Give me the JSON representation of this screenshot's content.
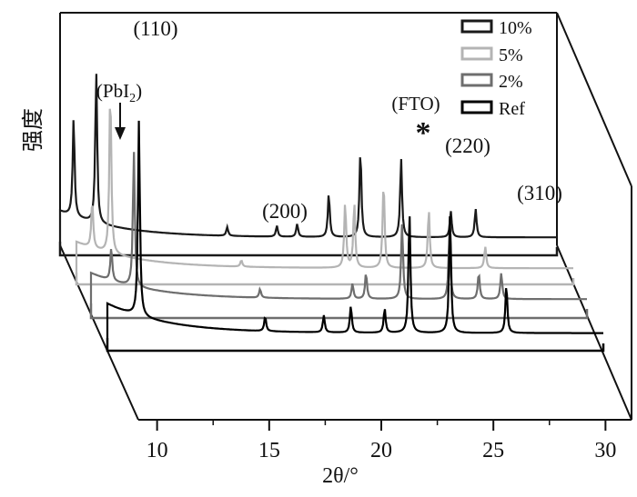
{
  "chart_data": {
    "type": "line",
    "subtype": "stacked-3d-waterfall",
    "title": "",
    "xlabel": "2θ/°",
    "ylabel": "强度",
    "xlim": [
      9,
      31
    ],
    "x_ticks": [
      10,
      15,
      20,
      25,
      30
    ],
    "x_tick_labels": [
      "10",
      "15",
      "20",
      "25",
      "30"
    ],
    "grid": false,
    "legend_position": "top-right",
    "legend": [
      "10%",
      "5%",
      "2%",
      "Ref"
    ],
    "annotations": [
      {
        "label": "(PbI",
        "sub": "2",
        "close": ")",
        "x": 9.7
      },
      {
        "label": "(110)",
        "x": 10.5
      },
      {
        "label": "(200)",
        "x": 16.5
      },
      {
        "label": "(FTO)",
        "marker": "*",
        "x": 21.3
      },
      {
        "label": "(220)",
        "x": 22.9
      },
      {
        "label": "(310)",
        "x": 26.3
      }
    ],
    "series": [
      {
        "name": "10%",
        "color": "#1a1a1a",
        "base": 0.02,
        "peaks": [
          [
            9.6,
            0.45
          ],
          [
            10.6,
            0.7
          ],
          [
            16.4,
            0.04
          ],
          [
            18.6,
            0.05
          ],
          [
            19.5,
            0.06
          ],
          [
            20.9,
            0.2
          ],
          [
            22.3,
            0.4
          ],
          [
            24.1,
            0.36
          ],
          [
            26.3,
            0.12
          ],
          [
            27.4,
            0.13
          ]
        ]
      },
      {
        "name": "5%",
        "color": "#b4b4b4",
        "base": 0.02,
        "peaks": [
          [
            9.7,
            0.22
          ],
          [
            10.5,
            0.76
          ],
          [
            16.3,
            0.03
          ],
          [
            20.9,
            0.3
          ],
          [
            21.3,
            0.3
          ],
          [
            22.6,
            0.4
          ],
          [
            24.6,
            0.27
          ],
          [
            27.1,
            0.1
          ]
        ]
      },
      {
        "name": "2%",
        "color": "#6e6e6e",
        "base": 0.02,
        "peaks": [
          [
            9.9,
            0.15
          ],
          [
            10.9,
            0.62
          ],
          [
            16.5,
            0.04
          ],
          [
            20.6,
            0.07
          ],
          [
            21.2,
            0.12
          ],
          [
            22.8,
            0.35
          ],
          [
            24.9,
            0.3
          ],
          [
            26.2,
            0.12
          ],
          [
            27.2,
            0.12
          ]
        ]
      },
      {
        "name": "Ref",
        "color": "#000000",
        "base": 0.02,
        "peaks": [
          [
            10.4,
            0.8
          ],
          [
            16.0,
            0.06
          ],
          [
            18.6,
            0.07
          ],
          [
            19.8,
            0.11
          ],
          [
            21.3,
            0.1
          ],
          [
            22.4,
            0.5
          ],
          [
            24.2,
            0.5
          ],
          [
            26.7,
            0.2
          ]
        ]
      }
    ]
  }
}
